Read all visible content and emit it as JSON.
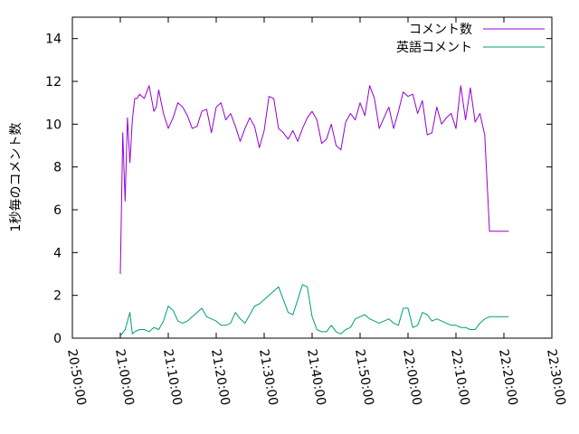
{
  "chart_data": {
    "type": "line",
    "title": "",
    "xlabel": "",
    "ylabel": "1秒毎のコメント数",
    "x_unit": "time",
    "xlim": [
      "20:50:00",
      "22:30:00"
    ],
    "ylim": [
      0,
      15
    ],
    "x_ticks": [
      "20:50:00",
      "21:00:00",
      "21:10:00",
      "21:20:00",
      "21:30:00",
      "21:40:00",
      "21:50:00",
      "22:00:00",
      "22:10:00",
      "22:20:00",
      "22:30:00"
    ],
    "y_ticks": [
      "0",
      "2",
      "4",
      "6",
      "8",
      "10",
      "12",
      "14"
    ],
    "grid": false,
    "legend_position": "top-right",
    "series": [
      {
        "name": "コメント数",
        "color": "#9400d3",
        "x": [
          "21:00:00",
          "21:00:30",
          "21:01:00",
          "21:01:30",
          "21:02:00",
          "21:02:30",
          "21:03:00",
          "21:03:30",
          "21:04:00",
          "21:05:00",
          "21:06:00",
          "21:07:00",
          "21:07:30",
          "21:08:00",
          "21:09:00",
          "21:10:00",
          "21:11:00",
          "21:12:00",
          "21:13:00",
          "21:14:00",
          "21:15:00",
          "21:16:00",
          "21:17:00",
          "21:18:00",
          "21:19:00",
          "21:20:00",
          "21:21:00",
          "21:22:00",
          "21:23:00",
          "21:24:00",
          "21:25:00",
          "21:26:00",
          "21:27:00",
          "21:28:00",
          "21:29:00",
          "21:30:00",
          "21:31:00",
          "21:32:00",
          "21:33:00",
          "21:34:00",
          "21:35:00",
          "21:36:00",
          "21:37:00",
          "21:38:00",
          "21:39:00",
          "21:40:00",
          "21:41:00",
          "21:42:00",
          "21:43:00",
          "21:44:00",
          "21:45:00",
          "21:46:00",
          "21:47:00",
          "21:48:00",
          "21:49:00",
          "21:50:00",
          "21:51:00",
          "21:52:00",
          "21:53:00",
          "21:54:00",
          "21:55:00",
          "21:56:00",
          "21:57:00",
          "21:58:00",
          "21:59:00",
          "22:00:00",
          "22:01:00",
          "22:02:00",
          "22:03:00",
          "22:04:00",
          "22:05:00",
          "22:06:00",
          "22:07:00",
          "22:08:00",
          "22:09:00",
          "22:10:00",
          "22:11:00",
          "22:12:00",
          "22:13:00",
          "22:14:00",
          "22:15:00",
          "22:16:00",
          "22:17:00",
          "22:18:00",
          "22:19:00",
          "22:20:00",
          "22:21:00"
        ],
        "y": [
          3.0,
          9.6,
          6.4,
          10.3,
          8.2,
          10.2,
          11.2,
          11.2,
          11.4,
          11.2,
          11.8,
          10.6,
          10.8,
          11.6,
          10.5,
          9.8,
          10.3,
          11.0,
          10.8,
          10.4,
          9.8,
          9.9,
          10.6,
          10.7,
          9.6,
          10.8,
          11.0,
          10.2,
          10.5,
          9.9,
          9.2,
          9.8,
          10.3,
          9.9,
          8.9,
          9.7,
          11.3,
          11.2,
          9.8,
          9.6,
          9.3,
          9.7,
          9.2,
          9.8,
          10.3,
          10.6,
          10.2,
          9.1,
          9.3,
          10.0,
          9.0,
          8.8,
          10.1,
          10.5,
          10.2,
          11.0,
          10.4,
          11.8,
          11.2,
          9.8,
          10.3,
          10.8,
          9.8,
          10.6,
          11.5,
          11.3,
          11.4,
          10.5,
          11.1,
          9.5,
          9.6,
          10.8,
          10.0,
          10.3,
          10.5,
          9.8,
          11.8,
          10.2,
          11.7,
          10.1,
          10.5,
          9.5,
          5.0,
          5.0,
          5.0,
          5.0,
          5.0
        ]
      },
      {
        "name": "英語コメント",
        "color": "#009e73",
        "x": [
          "21:00:00",
          "21:01:00",
          "21:02:00",
          "21:02:30",
          "21:03:00",
          "21:04:00",
          "21:05:00",
          "21:06:00",
          "21:07:00",
          "21:08:00",
          "21:09:00",
          "21:10:00",
          "21:11:00",
          "21:12:00",
          "21:13:00",
          "21:14:00",
          "21:15:00",
          "21:16:00",
          "21:17:00",
          "21:18:00",
          "21:19:00",
          "21:20:00",
          "21:21:00",
          "21:22:00",
          "21:23:00",
          "21:24:00",
          "21:25:00",
          "21:26:00",
          "21:27:00",
          "21:28:00",
          "21:29:00",
          "21:30:00",
          "21:31:00",
          "21:32:00",
          "21:33:00",
          "21:34:00",
          "21:35:00",
          "21:36:00",
          "21:37:00",
          "21:38:00",
          "21:39:00",
          "21:40:00",
          "21:41:00",
          "21:42:00",
          "21:43:00",
          "21:44:00",
          "21:45:00",
          "21:46:00",
          "21:47:00",
          "21:48:00",
          "21:49:00",
          "21:50:00",
          "21:51:00",
          "21:52:00",
          "21:53:00",
          "21:54:00",
          "21:55:00",
          "21:56:00",
          "21:57:00",
          "21:58:00",
          "21:59:00",
          "22:00:00",
          "22:01:00",
          "22:02:00",
          "22:03:00",
          "22:04:00",
          "22:05:00",
          "22:06:00",
          "22:07:00",
          "22:08:00",
          "22:09:00",
          "22:10:00",
          "22:11:00",
          "22:12:00",
          "22:13:00",
          "22:14:00",
          "22:15:00",
          "22:16:00",
          "22:17:00",
          "22:18:00",
          "22:19:00",
          "22:20:00",
          "22:21:00"
        ],
        "y": [
          0.1,
          0.4,
          1.2,
          0.2,
          0.3,
          0.4,
          0.4,
          0.3,
          0.5,
          0.4,
          0.8,
          1.5,
          1.3,
          0.8,
          0.7,
          0.8,
          1.0,
          1.2,
          1.4,
          1.0,
          0.9,
          0.8,
          0.6,
          0.6,
          0.7,
          1.2,
          0.9,
          0.7,
          1.1,
          1.5,
          1.6,
          1.8,
          2.0,
          2.2,
          2.4,
          1.8,
          1.2,
          1.1,
          1.8,
          2.5,
          2.4,
          1.0,
          0.4,
          0.3,
          0.3,
          0.6,
          0.3,
          0.2,
          0.4,
          0.5,
          0.9,
          1.0,
          1.1,
          0.9,
          0.8,
          0.7,
          0.8,
          0.9,
          0.7,
          0.6,
          1.4,
          1.4,
          0.5,
          0.6,
          1.2,
          1.1,
          0.8,
          0.9,
          0.8,
          0.7,
          0.6,
          0.6,
          0.5,
          0.5,
          0.4,
          0.4,
          0.7,
          0.9,
          1.0,
          1.0,
          1.0,
          1.0,
          1.0
        ]
      }
    ]
  }
}
